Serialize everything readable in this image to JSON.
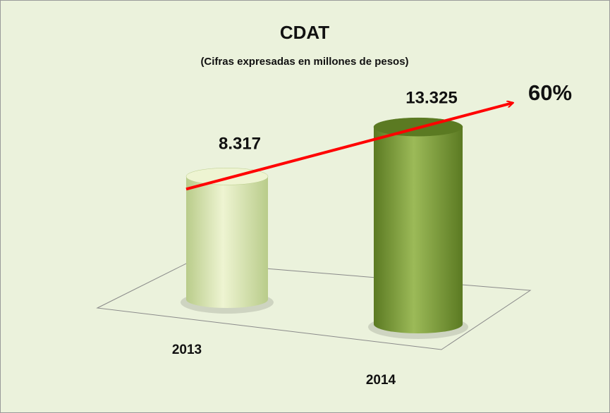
{
  "chart_data": {
    "type": "bar",
    "title": "CDAT",
    "subtitle": "(Cifras expresadas en millones de pesos)",
    "categories": [
      "2013",
      "2014"
    ],
    "values": [
      8317,
      13325
    ],
    "value_labels": [
      "8.317",
      "13.325"
    ],
    "colors": [
      [
        "#eef4d2",
        "#b9cc8a"
      ],
      [
        "#9cba58",
        "#5b7a22"
      ]
    ],
    "annotation": "60%"
  }
}
